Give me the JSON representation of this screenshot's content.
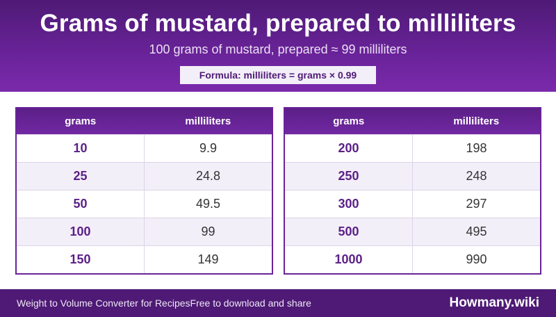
{
  "header": {
    "title": "Grams of mustard, prepared to milliliters",
    "subtitle": "100 grams of mustard, prepared ≈ 99 milliliters",
    "formula": "Formula: milliliters = grams × 0.99"
  },
  "tables": [
    {
      "col_grams": "grams",
      "col_ml": "milliliters",
      "rows": [
        {
          "grams": "10",
          "ml": "9.9"
        },
        {
          "grams": "25",
          "ml": "24.8"
        },
        {
          "grams": "50",
          "ml": "49.5"
        },
        {
          "grams": "100",
          "ml": "99"
        },
        {
          "grams": "150",
          "ml": "149"
        }
      ]
    },
    {
      "col_grams": "grams",
      "col_ml": "milliliters",
      "rows": [
        {
          "grams": "200",
          "ml": "198"
        },
        {
          "grams": "250",
          "ml": "248"
        },
        {
          "grams": "300",
          "ml": "297"
        },
        {
          "grams": "500",
          "ml": "495"
        },
        {
          "grams": "1000",
          "ml": "990"
        }
      ]
    }
  ],
  "footer": {
    "left_text": "Weight to Volume Converter for RecipesFree to download and share",
    "brand": "Howmany.wiki"
  },
  "colors": {
    "primary": "#5b1f87",
    "header_bg": "#4e1a75",
    "row_alt": "#f3eff9"
  }
}
